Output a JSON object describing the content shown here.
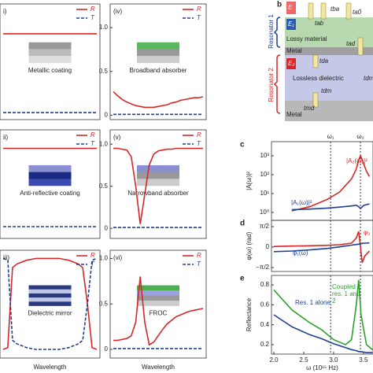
{
  "chart_data": [
    {
      "type": "line",
      "panel": "i)",
      "inset_label": "Metallic coating",
      "ylim": [
        -0.05,
        1.27
      ],
      "legend": true,
      "series": [
        {
          "name": "R",
          "color": "#d62728",
          "style": "solid",
          "values": [
            0.93,
            0.93,
            0.93,
            0.93,
            0.93,
            0.93,
            0.93,
            0.93,
            0.93,
            0.93,
            0.93,
            0.93,
            0.93,
            0.93,
            0.93,
            0.93,
            0.93,
            0.93,
            0.93,
            0.93,
            0.93
          ]
        },
        {
          "name": "T",
          "color": "#1f3f8f",
          "style": "dashed",
          "values": [
            0.03,
            0.03,
            0.03,
            0.03,
            0.03,
            0.03,
            0.03,
            0.03,
            0.03,
            0.03,
            0.03,
            0.03,
            0.03,
            0.03,
            0.03,
            0.03,
            0.03,
            0.03,
            0.03,
            0.03,
            0.03
          ]
        }
      ]
    },
    {
      "type": "line",
      "panel": "ii)",
      "inset_label": "Anti-reflective coating",
      "ylim": [
        -0.12,
        1.17
      ],
      "legend": true,
      "series": [
        {
          "name": "R",
          "color": "#d62728",
          "style": "solid",
          "values": [
            0.95,
            0.95,
            0.95,
            0.95,
            0.95,
            0.95,
            0.95,
            0.95,
            0.95,
            0.95,
            0.95,
            0.95,
            0.95,
            0.95,
            0.95,
            0.95,
            0.95,
            0.95,
            0.95,
            0.95,
            0.95
          ]
        },
        {
          "name": "T",
          "color": "#1f3f8f",
          "style": "dashed",
          "values": [
            0.02,
            0.02,
            0.02,
            0.02,
            0.02,
            0.02,
            0.02,
            0.02,
            0.02,
            0.02,
            0.02,
            0.02,
            0.02,
            0.02,
            0.02,
            0.02,
            0.02,
            0.02,
            0.02,
            0.02,
            0.02
          ]
        }
      ]
    },
    {
      "type": "line",
      "panel": "iii)",
      "inset_label": "Dielectric mirror",
      "xlabel": "Wavelength",
      "ylim": [
        -0.095,
        1.09
      ],
      "legend": true,
      "series": [
        {
          "name": "R",
          "color": "#d62728",
          "style": "solid",
          "values": [
            0,
            0.02,
            0.9,
            0.94,
            0.96,
            0.98,
            0.99,
            1,
            1,
            1,
            1,
            1,
            1,
            0.99,
            0.98,
            0.96,
            0.94,
            0.9,
            0.5,
            0.02,
            0
          ]
        },
        {
          "name": "T",
          "color": "#1f3f8f",
          "style": "dashed",
          "values": [
            1,
            0.98,
            0.1,
            0.06,
            0.04,
            0.02,
            0.01,
            0,
            0,
            0,
            0,
            0,
            0,
            0.01,
            0.02,
            0.04,
            0.06,
            0.1,
            0.5,
            0.98,
            1
          ]
        }
      ]
    },
    {
      "type": "line",
      "panel": "(iv)",
      "inset_label": "Broadband absorber",
      "ylim": [
        -0.05,
        1.27
      ],
      "yticks": [
        0,
        0.5,
        {
          "value": 1,
          "label": "1.0"
        }
      ],
      "legend": true,
      "series": [
        {
          "name": "R",
          "color": "#d62728",
          "style": "solid",
          "values": [
            0.27,
            0.22,
            0.18,
            0.15,
            0.13,
            0.11,
            0.1,
            0.09,
            0.09,
            0.09,
            0.1,
            0.11,
            0.12,
            0.14,
            0.15,
            0.17,
            0.18,
            0.19,
            0.2,
            0.2,
            0.21
          ]
        },
        {
          "name": "T",
          "color": "#1f3f8f",
          "style": "dashed",
          "values": [
            0.01,
            0.01,
            0.01,
            0.01,
            0.01,
            0.01,
            0.01,
            0.01,
            0.01,
            0.01,
            0.01,
            0.01,
            0.01,
            0.01,
            0.01,
            0.01,
            0.01,
            0.01,
            0.01,
            0.01,
            0.01
          ]
        }
      ]
    },
    {
      "type": "line",
      "panel": "(v)",
      "inset_label": "Narrowband absorber",
      "ylim": [
        -0.12,
        1.17
      ],
      "yticks": [
        0,
        0.5,
        {
          "value": 1,
          "label": "1.0"
        }
      ],
      "legend": true,
      "series": [
        {
          "name": "R",
          "color": "#d62728",
          "style": "solid",
          "values": [
            0.95,
            0.95,
            0.94,
            0.93,
            0.85,
            0.5,
            0.05,
            0.4,
            0.75,
            0.88,
            0.92,
            0.93,
            0.94,
            0.94,
            0.95,
            0.95,
            0.95,
            0.95,
            0.95,
            0.95,
            0.95
          ]
        },
        {
          "name": "T",
          "color": "#1f3f8f",
          "style": "dashed",
          "values": [
            0.01,
            0.01,
            0.01,
            0.01,
            0.01,
            0.01,
            0.01,
            0.01,
            0.01,
            0.01,
            0.01,
            0.01,
            0.01,
            0.01,
            0.01,
            0.01,
            0.01,
            0.01,
            0.01,
            0.01,
            0.01
          ]
        }
      ]
    },
    {
      "type": "line",
      "panel": "(vi)",
      "inset_label": "FROC",
      "xlabel": "Wavelength",
      "ylim": [
        -0.095,
        1.09
      ],
      "yticks": [
        0,
        0.5,
        {
          "value": 1,
          "label": "1.0"
        }
      ],
      "legend": true,
      "series": [
        {
          "name": "R",
          "color": "#d62728",
          "style": "solid",
          "values": [
            0.1,
            0.1,
            0.11,
            0.12,
            0.15,
            0.3,
            0.8,
            0.3,
            0.05,
            0.08,
            0.15,
            0.22,
            0.28,
            0.32,
            0.36,
            0.38,
            0.4,
            0.42,
            0.43,
            0.44,
            0.45
          ]
        },
        {
          "name": "T",
          "color": "#1f3f8f",
          "style": "dashed",
          "values": [
            0.01,
            0.01,
            0.01,
            0.01,
            0.01,
            0.01,
            0.01,
            0.01,
            0.01,
            0.01,
            0.01,
            0.01,
            0.01,
            0.01,
            0.01,
            0.01,
            0.01,
            0.01,
            0.01,
            0.01,
            0.01
          ]
        }
      ]
    },
    {
      "type": "line",
      "panel": "c",
      "ylabel": "|A(ω)|²",
      "log_y": true,
      "xlim": [
        1.96,
        3.66
      ],
      "ylim": [
        0.38,
        5600
      ],
      "yticks": [
        {
          "value": 1,
          "label": "10⁰"
        },
        {
          "value": 10,
          "label": "10¹"
        },
        {
          "value": 100,
          "label": "10²"
        },
        {
          "value": 1000,
          "label": "10³"
        }
      ],
      "vlines": [
        {
          "value": 2.95,
          "label": "ω₁"
        },
        {
          "value": 3.45,
          "label": "ω₂"
        }
      ],
      "x": [
        2.3,
        2.6,
        2.9,
        3.1,
        3.3,
        3.38,
        3.42,
        3.45,
        3.5,
        3.55,
        3.6
      ],
      "series": [
        {
          "name": "|A₂(ω)|²",
          "color": "#d62728",
          "style": "solid",
          "values": [
            1.2,
            2,
            5,
            12,
            60,
            200,
            600,
            1000,
            400,
            150,
            80
          ]
        },
        {
          "name": "|A₁(ω)|²",
          "color": "#1f3f8f",
          "style": "solid",
          "values": [
            1.4,
            1.5,
            1.7,
            1.9,
            2.2,
            2.4,
            2.0,
            1.6,
            2.3,
            2.6,
            2.8
          ]
        }
      ]
    },
    {
      "type": "line",
      "panel": "d",
      "ylabel": "φ(ω) (rad)",
      "xlim": [
        1.96,
        3.66
      ],
      "ylim": [
        -1.87,
        2.05
      ],
      "yticks": [
        {
          "value": -1.5708,
          "label": "−π/2"
        },
        0,
        {
          "value": 1.5708,
          "label": "π/2"
        }
      ],
      "vlines": [
        {
          "value": 2.95
        },
        {
          "value": 3.45
        }
      ],
      "x": [
        2.0,
        2.3,
        2.6,
        2.9,
        3.1,
        3.3,
        3.38,
        3.42,
        3.45,
        3.48,
        3.52,
        3.6
      ],
      "series": [
        {
          "name": "φ₂",
          "color": "#d62728",
          "style": "solid",
          "values": [
            0.05,
            0.08,
            0.1,
            0.14,
            0.18,
            0.3,
            0.7,
            1.2,
            0,
            -1.2,
            -0.7,
            -0.3
          ]
        },
        {
          "name": "φ₁(ω)",
          "color": "#1f3f8f",
          "style": "solid",
          "values": [
            -0.35,
            -0.3,
            -0.22,
            -0.1,
            0.02,
            0.15,
            0.2,
            0.22,
            0.25,
            0.28,
            0.3,
            0.32
          ]
        }
      ]
    },
    {
      "type": "line",
      "panel": "e",
      "ylabel": "Reflectance",
      "xlabel": "ω (10¹⁵ Hz)",
      "xlim": [
        1.96,
        3.66
      ],
      "ylim": [
        0.105,
        0.895
      ],
      "xticks": [
        {
          "value": 2,
          "label": "2.0"
        },
        2.5,
        {
          "value": 3,
          "label": "3.0"
        },
        3.5
      ],
      "yticks": [
        0.2,
        0.4,
        0.6,
        0.8
      ],
      "vlines": [
        {
          "value": 2.95
        },
        {
          "value": 3.45
        }
      ],
      "x": [
        2.0,
        2.3,
        2.6,
        2.8,
        3.0,
        3.2,
        3.3,
        3.38,
        3.42,
        3.46,
        3.55,
        3.65
      ],
      "series": [
        {
          "name": "Res. 1 alone",
          "color": "#1f3f8f",
          "style": "solid",
          "values": [
            0.5,
            0.38,
            0.3,
            0.26,
            0.21,
            0.17,
            0.15,
            0.14,
            0.13,
            0.13,
            0.12,
            0.12
          ]
        },
        {
          "name": "Coupled res. 1 and 2",
          "color": "#2ca02c",
          "style": "solid",
          "values": [
            0.75,
            0.55,
            0.42,
            0.35,
            0.25,
            0.2,
            0.25,
            0.6,
            0.85,
            0.5,
            0.2,
            0.15
          ]
        }
      ]
    }
  ],
  "diagram": {
    "label": "b",
    "resonator_1": "Resonator 1",
    "resonator_2": "Resonator 2",
    "layers": [
      "Lossy material",
      "Metal",
      "Lossless dielectric",
      "Metal"
    ],
    "fields": [
      "E",
      "E₁",
      "E₂"
    ],
    "coefficients": [
      "tba",
      "tab",
      "ta0",
      "tad",
      "tda",
      "tdm",
      "tmd",
      "tdm"
    ]
  }
}
